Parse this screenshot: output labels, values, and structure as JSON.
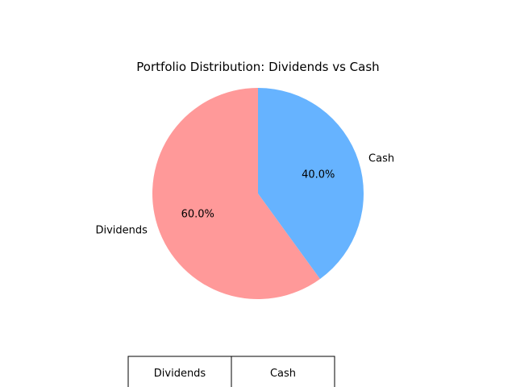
{
  "chart_data": {
    "type": "pie",
    "title": "Portfolio Distribution: Dividends vs Cash",
    "slices": [
      {
        "label": "Dividends",
        "value": 60.0,
        "pct_label": "60.0%",
        "color": "#ff9999"
      },
      {
        "label": "Cash",
        "value": 40.0,
        "pct_label": "40.0%",
        "color": "#66b3ff"
      }
    ],
    "start_angle_deg": 90,
    "direction": "counterclockwise",
    "table": {
      "columns": [
        "Dividends",
        "Cash"
      ]
    }
  }
}
